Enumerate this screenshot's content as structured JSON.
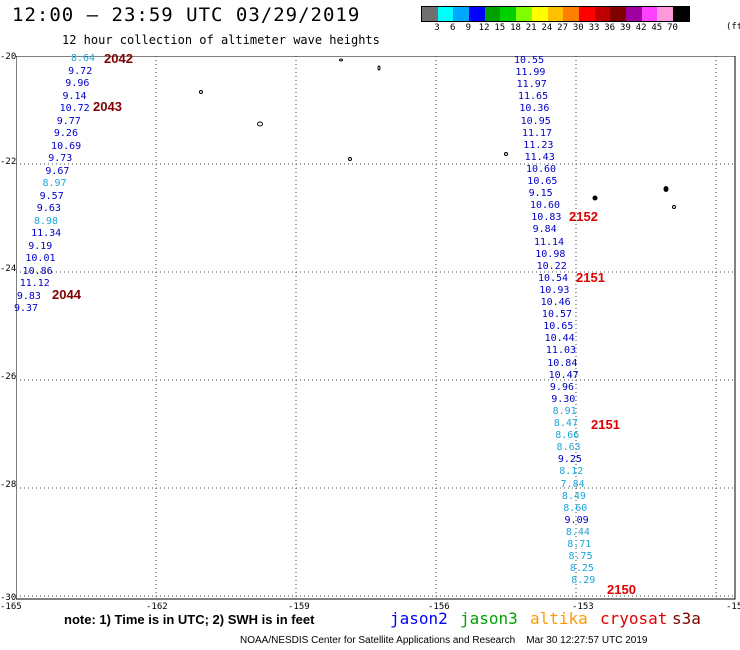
{
  "header": {
    "title": "12:00 – 23:59 UTC 03/29/2019",
    "subtitle": "12 hour collection of altimeter wave heights"
  },
  "legend": {
    "colors": [
      "#707070",
      "#00ffff",
      "#00a8ff",
      "#0000ff",
      "#00a000",
      "#00d000",
      "#7fff00",
      "#ffff00",
      "#ffc000",
      "#ff8000",
      "#ff0000",
      "#c00000",
      "#800000",
      "#a000a0",
      "#ff40ff",
      "#ff99dd",
      "#000000"
    ],
    "labels": [
      "3",
      "6",
      "9",
      "12",
      "15",
      "18",
      "21",
      "24",
      "27",
      "30",
      "33",
      "36",
      "39",
      "42",
      "45",
      "70"
    ],
    "unit": "(ft)"
  },
  "axes": {
    "lat_labels": [
      "-20",
      "-22",
      "-24",
      "-26",
      "-28",
      "-30"
    ],
    "lon_labels": [
      "-165",
      "-162",
      "-159",
      "-156",
      "-153",
      "-15"
    ]
  },
  "tracks": {
    "left": [
      {
        "v": "8.64",
        "c": "#1ca6d8"
      },
      {
        "v": "9.72",
        "c": "#0000c8"
      },
      {
        "v": "9.96",
        "c": "#0000c8"
      },
      {
        "v": "9.14",
        "c": "#0000c8"
      },
      {
        "v": "10.72",
        "c": "#0000c8"
      },
      {
        "v": "9.77",
        "c": "#0000c8"
      },
      {
        "v": "9.26",
        "c": "#0000c8"
      },
      {
        "v": "10.69",
        "c": "#0000c8"
      },
      {
        "v": "9.73",
        "c": "#0000c8"
      },
      {
        "v": "9.67",
        "c": "#0000c8"
      },
      {
        "v": "8.97",
        "c": "#1ca6d8"
      },
      {
        "v": "9.57",
        "c": "#0000c8"
      },
      {
        "v": "9.63",
        "c": "#0000c8"
      },
      {
        "v": "8.98",
        "c": "#1ca6d8"
      },
      {
        "v": "11.34",
        "c": "#0000c8"
      },
      {
        "v": "9.19",
        "c": "#0000c8"
      },
      {
        "v": "10.01",
        "c": "#0000c8"
      },
      {
        "v": "10.86",
        "c": "#0000c8"
      },
      {
        "v": "11.12",
        "c": "#0000c8"
      },
      {
        "v": "9.83",
        "c": "#0000c8"
      },
      {
        "v": "9.37",
        "c": "#0000c8"
      }
    ],
    "right": [
      {
        "v": "10.55",
        "c": "#0000c8"
      },
      {
        "v": "11.99",
        "c": "#0000c8"
      },
      {
        "v": "11.97",
        "c": "#0000c8"
      },
      {
        "v": "11.65",
        "c": "#0000c8"
      },
      {
        "v": "10.36",
        "c": "#0000c8"
      },
      {
        "v": "10.95",
        "c": "#0000c8"
      },
      {
        "v": "11.17",
        "c": "#0000c8"
      },
      {
        "v": "11.23",
        "c": "#0000c8"
      },
      {
        "v": "11.43",
        "c": "#0000c8"
      },
      {
        "v": "10.60",
        "c": "#0000c8"
      },
      {
        "v": "10.65",
        "c": "#0000c8"
      },
      {
        "v": "9.15",
        "c": "#0000c8"
      },
      {
        "v": "10.60",
        "c": "#0000c8"
      },
      {
        "v": "10.83",
        "c": "#0000c8"
      },
      {
        "v": "9.84",
        "c": "#0000c8"
      },
      {
        "v": "11.14",
        "c": "#0000c8"
      },
      {
        "v": "10.98",
        "c": "#0000c8"
      },
      {
        "v": "10.22",
        "c": "#0000c8"
      },
      {
        "v": "10.54",
        "c": "#0000c8"
      },
      {
        "v": "10.93",
        "c": "#0000c8"
      },
      {
        "v": "10.46",
        "c": "#0000c8"
      },
      {
        "v": "10.57",
        "c": "#0000c8"
      },
      {
        "v": "10.65",
        "c": "#0000c8"
      },
      {
        "v": "10.44",
        "c": "#0000c8"
      },
      {
        "v": "11.03",
        "c": "#0000c8"
      },
      {
        "v": "10.84",
        "c": "#0000c8"
      },
      {
        "v": "10.47",
        "c": "#0000c8"
      },
      {
        "v": "9.96",
        "c": "#0000c8"
      },
      {
        "v": "9.30",
        "c": "#0000c8"
      },
      {
        "v": "8.91",
        "c": "#1ca6d8"
      },
      {
        "v": "8.47",
        "c": "#1ca6d8"
      },
      {
        "v": "8.66",
        "c": "#1ca6d8"
      },
      {
        "v": "8.63",
        "c": "#1ca6d8"
      },
      {
        "v": "9.25",
        "c": "#0000c8"
      },
      {
        "v": "8.12",
        "c": "#1ca6d8"
      },
      {
        "v": "7.84",
        "c": "#1ca6d8"
      },
      {
        "v": "8.49",
        "c": "#1ca6d8"
      },
      {
        "v": "8.60",
        "c": "#1ca6d8"
      },
      {
        "v": "9.09",
        "c": "#0000c8"
      },
      {
        "v": "8.44",
        "c": "#1ca6d8"
      },
      {
        "v": "8.71",
        "c": "#1ca6d8"
      },
      {
        "v": "8.75",
        "c": "#1ca6d8"
      },
      {
        "v": "8.25",
        "c": "#1ca6d8"
      },
      {
        "v": "8.29",
        "c": "#1ca6d8"
      }
    ]
  },
  "pass_times": [
    {
      "t": "2042",
      "c": "#800000"
    },
    {
      "t": "2043",
      "c": "#800000"
    },
    {
      "t": "2044",
      "c": "#800000"
    },
    {
      "t": "2152",
      "c": "#e00000"
    },
    {
      "t": "2151",
      "c": "#e00000"
    },
    {
      "t": "2151",
      "c": "#e00000"
    },
    {
      "t": "2150",
      "c": "#e00000"
    }
  ],
  "footer": {
    "note": "note:  1) Time is in UTC;  2) SWH is in feet",
    "satellites": [
      {
        "name": "jason2",
        "color": "#0000ff"
      },
      {
        "name": "jason3",
        "color": "#00a000"
      },
      {
        "name": "altika",
        "color": "#ff9900"
      },
      {
        "name": "cryosat",
        "color": "#e00000"
      },
      {
        "name": "s3a",
        "color": "#800000"
      }
    ],
    "credit": "NOAA/NESDIS Center for Satellite Applications and Research",
    "timestamp": "Mar 30 12:27:57 UTC 2019"
  }
}
